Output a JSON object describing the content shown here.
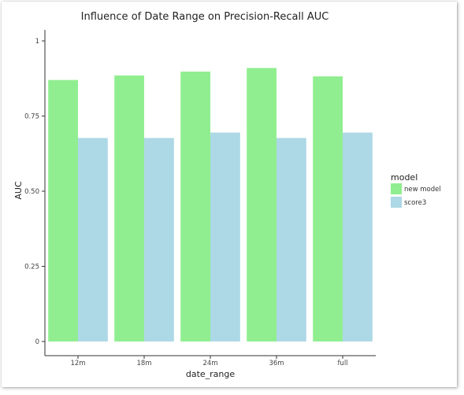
{
  "chart_data": {
    "type": "bar",
    "title": "Influence of Date Range on Precision-Recall AUC",
    "xlabel": "date_range",
    "ylabel": "AUC",
    "categories": [
      "12m",
      "18m",
      "24m",
      "36m",
      "full"
    ],
    "series": [
      {
        "name": "new model",
        "color": "#90ee90",
        "values": [
          0.87,
          0.885,
          0.898,
          0.91,
          0.882
        ]
      },
      {
        "name": "score3",
        "color": "#add8e6",
        "values": [
          0.677,
          0.677,
          0.695,
          0.677,
          0.695
        ]
      }
    ],
    "yticks": [
      0,
      0.25,
      0.5,
      0.75,
      1
    ],
    "ytick_labels": [
      "0",
      "0.25",
      "0.50",
      "0.75",
      "1"
    ],
    "ylim": [
      0,
      1
    ],
    "grid": false,
    "legend": {
      "title": "model",
      "placement": "right"
    }
  }
}
